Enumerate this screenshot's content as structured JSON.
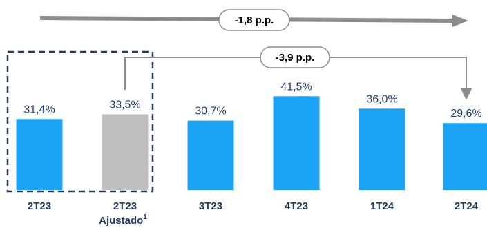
{
  "chart_data": {
    "type": "bar",
    "categories": [
      "2T23",
      "2T23",
      "3T23",
      "4T23",
      "1T24",
      "2T24"
    ],
    "category_sublabels": [
      "",
      "Ajustado",
      "",
      "",
      "",
      ""
    ],
    "category_superscripts": [
      "",
      "1",
      "",
      "",
      "",
      ""
    ],
    "values": [
      31.4,
      33.5,
      30.7,
      41.5,
      36.0,
      29.6
    ],
    "value_labels": [
      "31,4%",
      "33,5%",
      "30,7%",
      "41,5%",
      "36,0%",
      "29,6%"
    ],
    "bar_colors": [
      "#1AA3F5",
      "#BFBFBF",
      "#1AA3F5",
      "#1AA3F5",
      "#1AA3F5",
      "#1AA3F5"
    ],
    "highlight_box": {
      "categories": [
        0,
        1
      ],
      "style": "dashed",
      "color": "#1f3b67"
    },
    "annotations": [
      {
        "text": "-1,8 p.p.",
        "from": 0,
        "to": 5,
        "style": "trend-arrow"
      },
      {
        "text": "-3,9 p.p.",
        "from": 1,
        "to": 5,
        "style": "bracket-arrow"
      }
    ],
    "ylim": [
      0,
      45
    ],
    "grid": false,
    "legend": "none",
    "colors": {
      "accent": "#1AA3F5",
      "adjusted": "#BFBFBF",
      "text": "#1f3b67",
      "arrow": "#8C8C8C"
    }
  }
}
